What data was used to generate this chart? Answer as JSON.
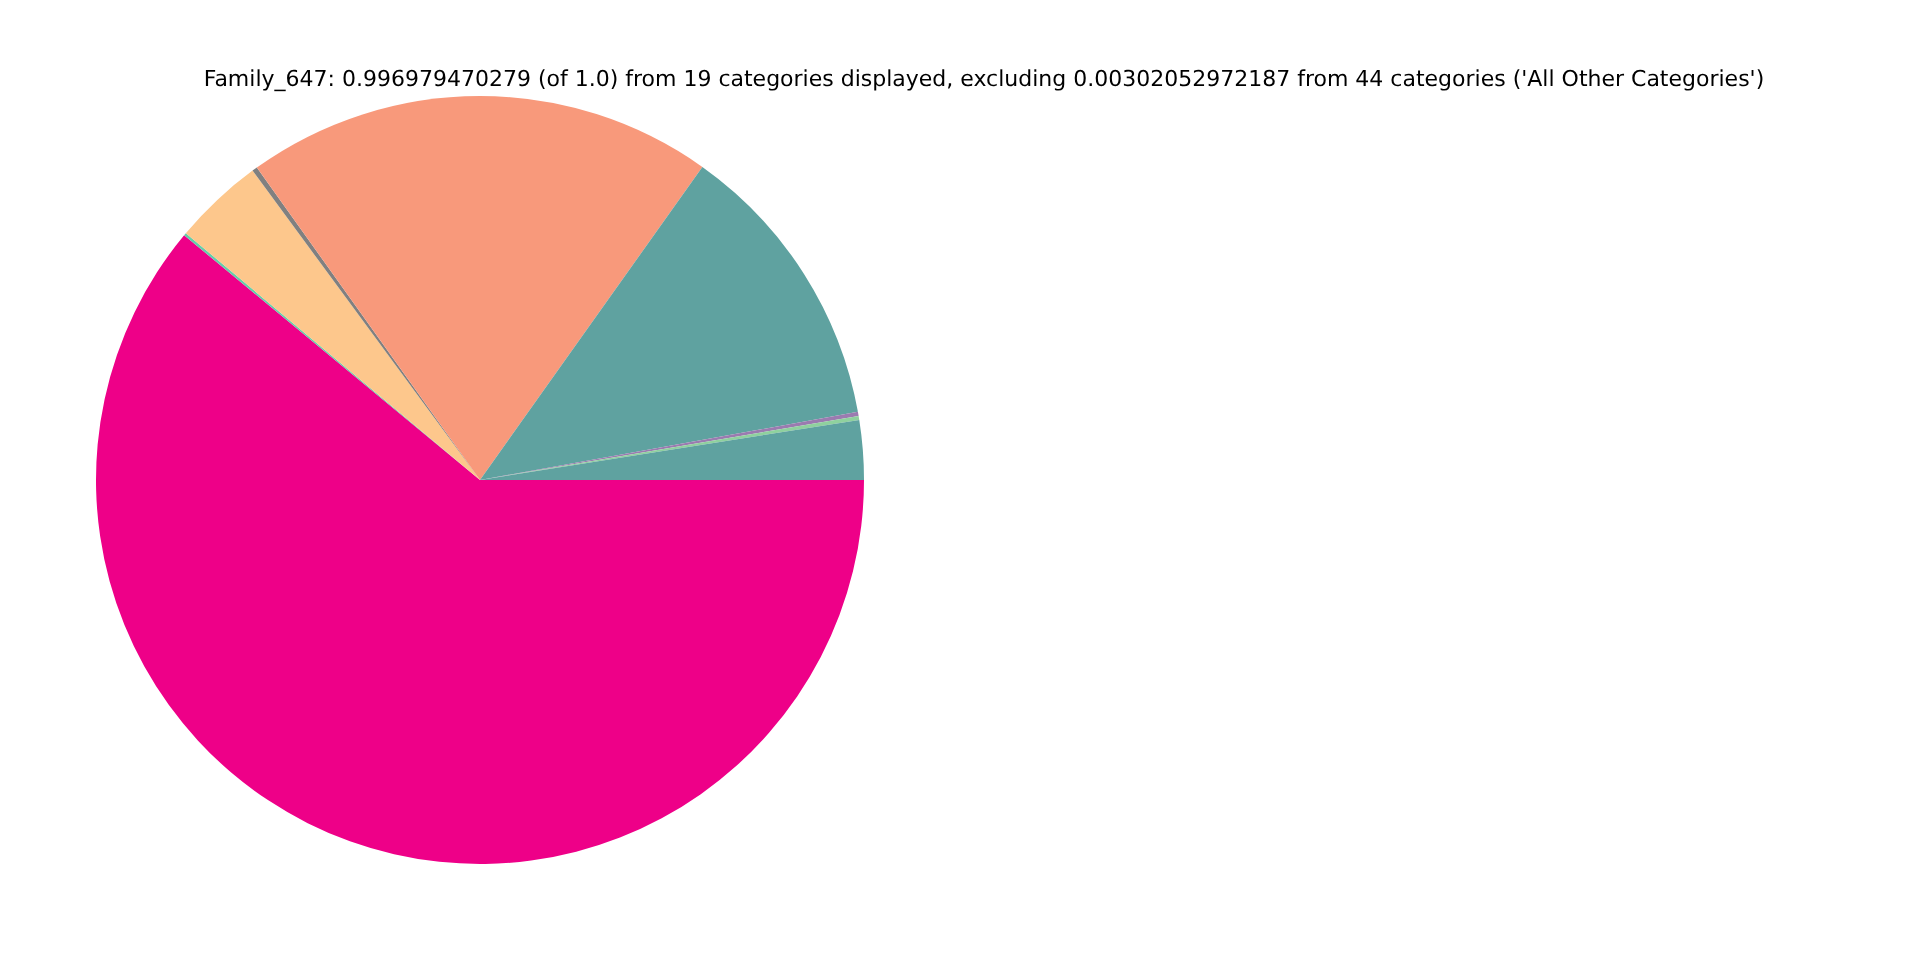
{
  "chart_data": {
    "type": "pie",
    "title": "Family_647: 0.996979470279 (of 1.0) from 19 categories displayed, excluding 0.00302052972187 from 44 categories ('All Other Categories')",
    "categories": [
      null,
      null,
      null,
      null,
      null,
      null,
      null,
      null,
      null
    ],
    "values": [
      2.5,
      0.17,
      0.17,
      12.33,
      19.7,
      0.22,
      3.8,
      0.11,
      61.0
    ],
    "colors": [
      "#5fa2a0",
      "#8fd19e",
      "#9b7bb0",
      "#5fa2a0",
      "#f8997b",
      "#808080",
      "#fdc78c",
      "#66cdaa",
      "#ee0088"
    ],
    "legend": false
  }
}
